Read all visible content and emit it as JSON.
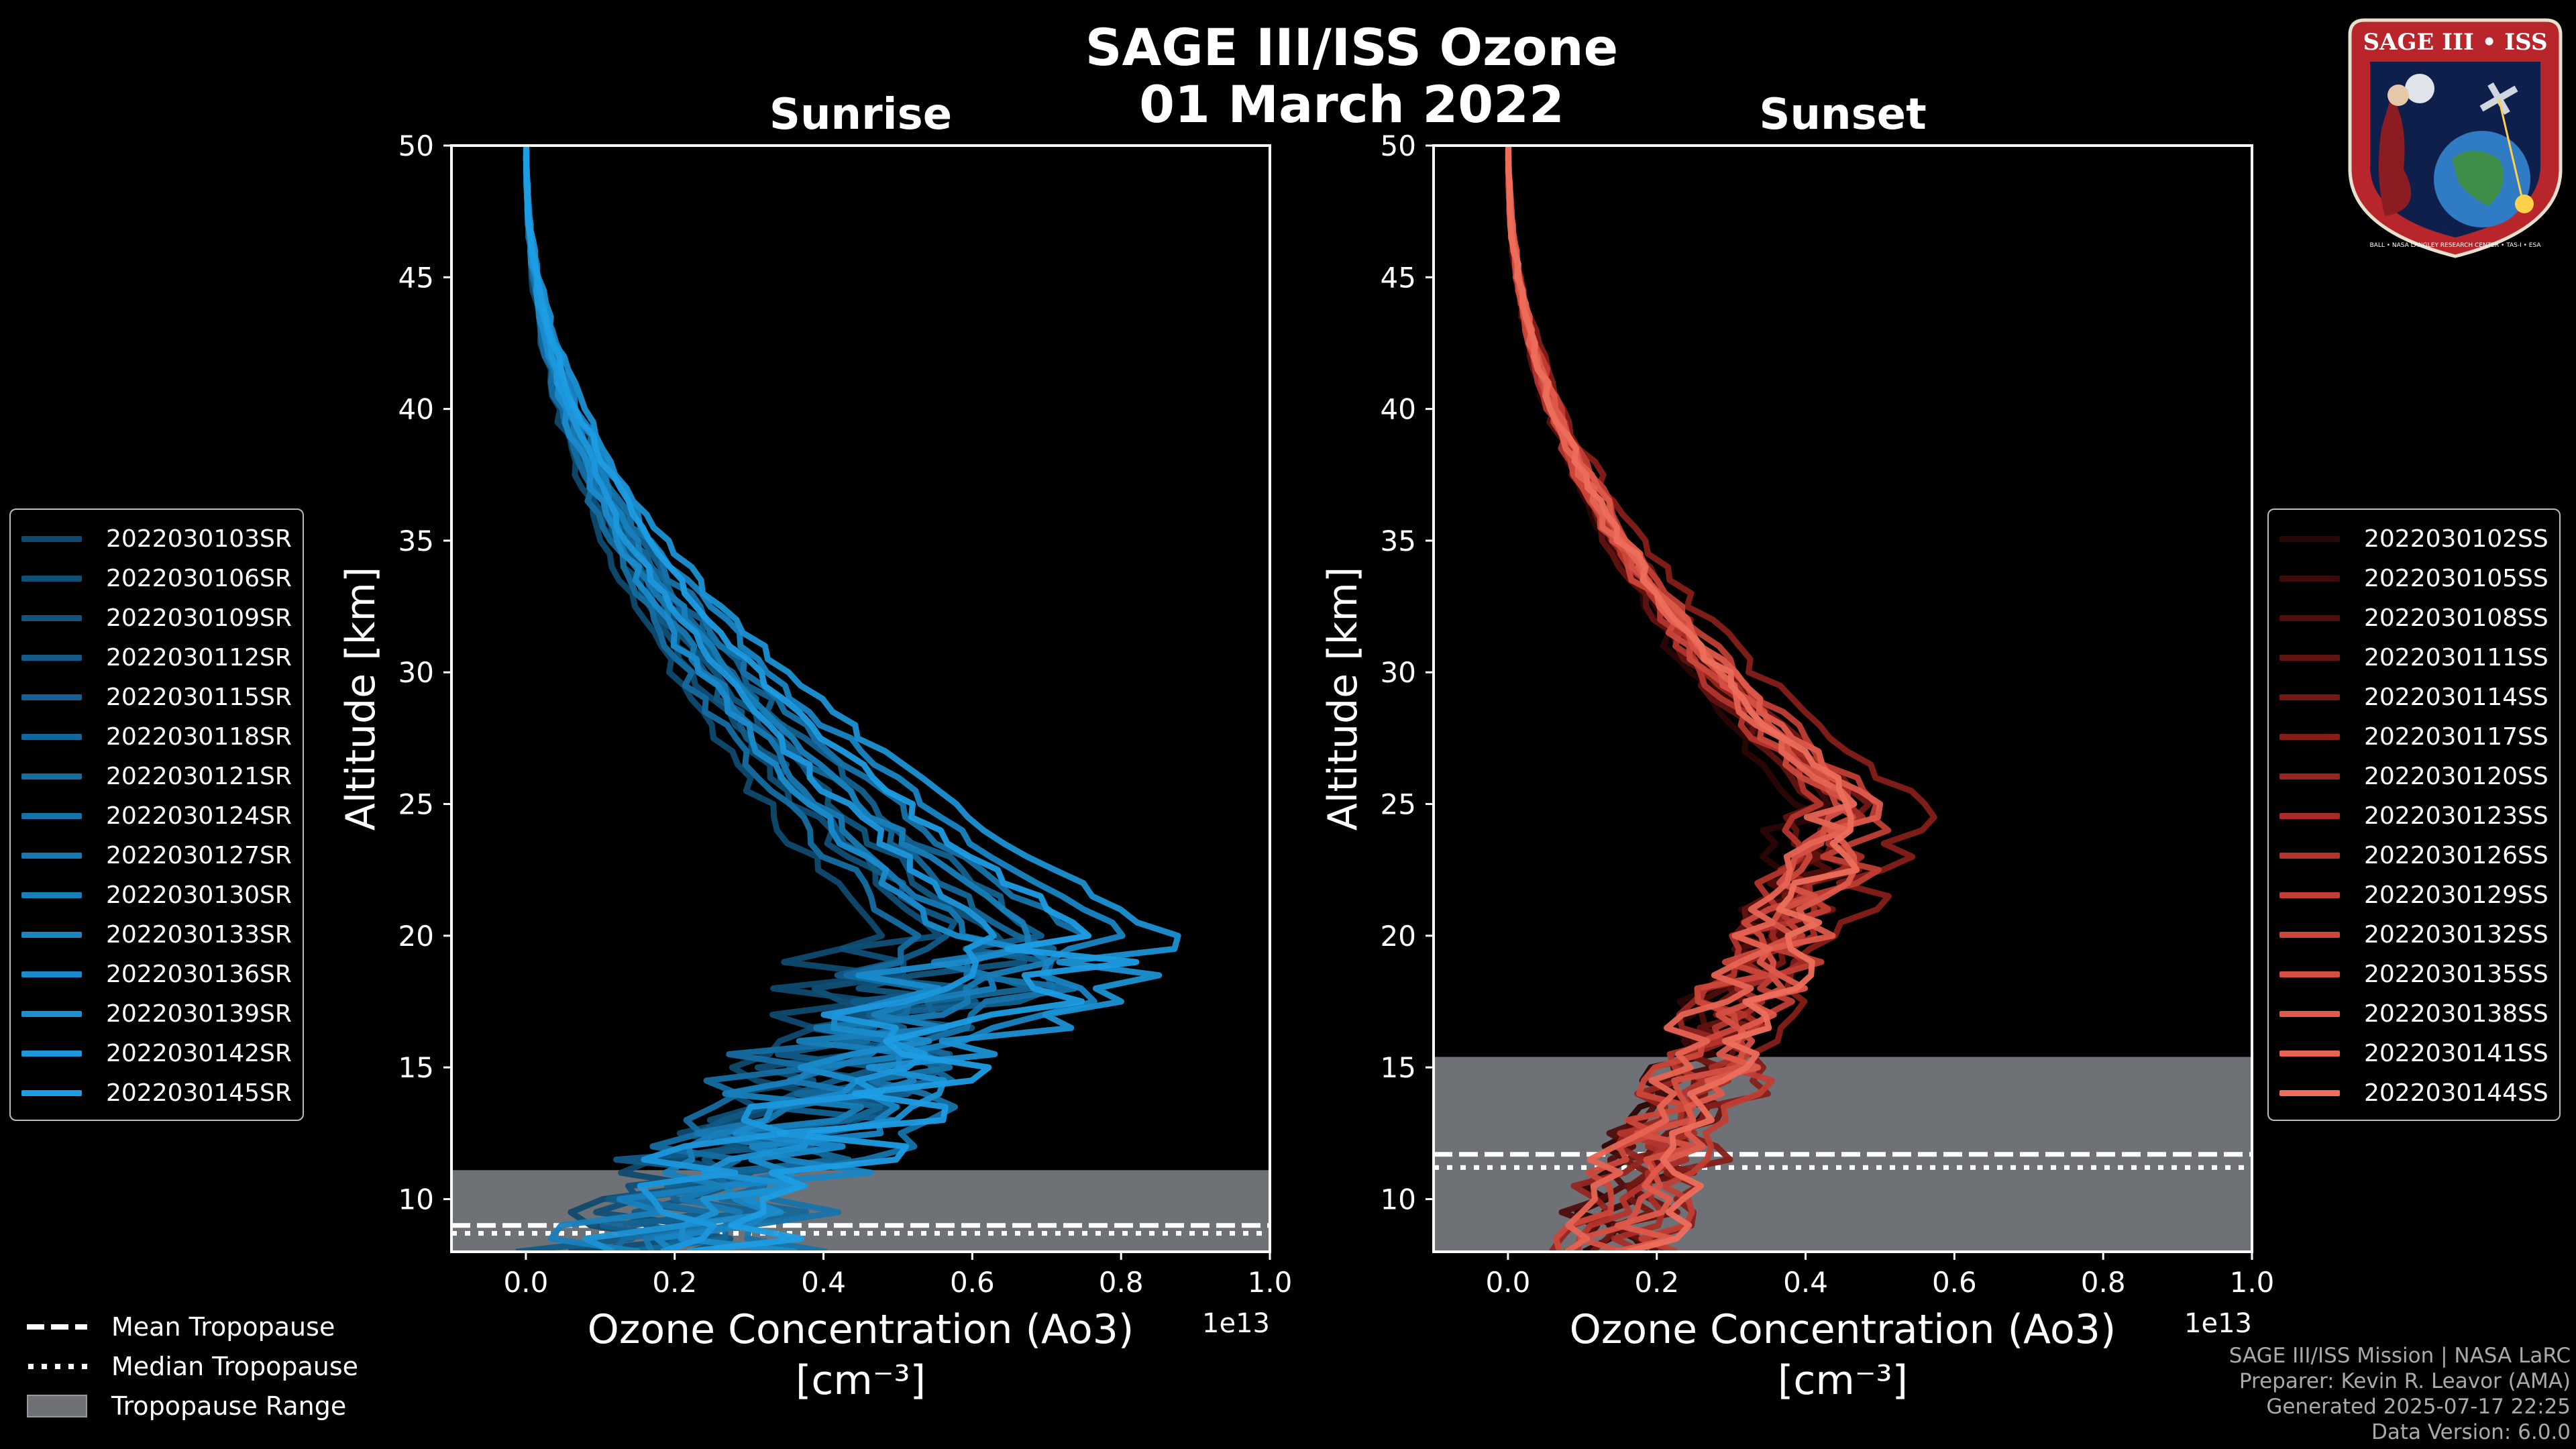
{
  "title": {
    "line1": "SAGE III/ISS Ozone",
    "line2": "01 March 2022"
  },
  "logo": {
    "text": "SAGE III • ISS",
    "ring_text": "BALL • NASA LANGLEY RESEARCH CENTER • TAS-I • ESA"
  },
  "chart_data": [
    {
      "type": "line",
      "title": "Sunrise",
      "xlabel": "Ozone Concentration (Ao3)",
      "xunit": "[cm⁻³]",
      "xscale_label": "1e13",
      "ylabel": "Altitude [km]",
      "xlim": [
        -0.1,
        1.0
      ],
      "ylim": [
        8,
        50
      ],
      "xticks": [
        "0.0",
        "0.2",
        "0.4",
        "0.6",
        "0.8",
        "1.0"
      ],
      "xtick_values": [
        0.0,
        0.2,
        0.4,
        0.6,
        0.8,
        1.0
      ],
      "yticks": [
        "10",
        "15",
        "20",
        "25",
        "30",
        "35",
        "40",
        "45",
        "50"
      ],
      "ytick_values": [
        10,
        15,
        20,
        25,
        30,
        35,
        40,
        45,
        50
      ],
      "tropopause": {
        "mean": 9.0,
        "median": 8.7,
        "range": [
          8,
          11.1
        ]
      },
      "series_names": [
        "2022030103SR",
        "2022030106SR",
        "2022030109SR",
        "2022030112SR",
        "2022030115SR",
        "2022030118SR",
        "2022030121SR",
        "2022030124SR",
        "2022030127SR",
        "2022030130SR",
        "2022030133SR",
        "2022030136SR",
        "2022030139SR",
        "2022030142SR",
        "2022030145SR"
      ],
      "series_colors": [
        "#0e4a6e",
        "#104f76",
        "#11557e",
        "#125b87",
        "#136190",
        "#146798",
        "#156da1",
        "#1673aa",
        "#1779b3",
        "#187fbb",
        "#1985c4",
        "#1a8bcc",
        "#1b91d4",
        "#1c97dc",
        "#1d9de4"
      ],
      "profile_peak_alt": 20,
      "profile_peak_values": [
        0.48,
        0.55,
        0.62,
        0.58,
        0.7,
        0.66,
        0.52,
        0.74,
        0.6,
        0.68,
        0.8,
        0.57,
        0.86,
        0.64,
        0.76
      ],
      "profile_low_values": [
        0.1,
        0.14,
        0.2,
        0.08,
        0.16,
        0.24,
        0.12,
        0.3,
        0.18,
        0.06,
        0.22,
        0.28,
        0.15,
        0.11,
        0.26
      ]
    },
    {
      "type": "line",
      "title": "Sunset",
      "xlabel": "Ozone Concentration (Ao3)",
      "xunit": "[cm⁻³]",
      "xscale_label": "1e13",
      "ylabel": "Altitude [km]",
      "xlim": [
        -0.1,
        1.0
      ],
      "ylim": [
        8,
        50
      ],
      "xticks": [
        "0.0",
        "0.2",
        "0.4",
        "0.6",
        "0.8",
        "1.0"
      ],
      "xtick_values": [
        0.0,
        0.2,
        0.4,
        0.6,
        0.8,
        1.0
      ],
      "yticks": [
        "10",
        "15",
        "20",
        "25",
        "30",
        "35",
        "40",
        "45",
        "50"
      ],
      "ytick_values": [
        10,
        15,
        20,
        25,
        30,
        35,
        40,
        45,
        50
      ],
      "tropopause": {
        "mean": 11.7,
        "median": 11.2,
        "range": [
          8,
          15.4
        ]
      },
      "series_names": [
        "2022030102SS",
        "2022030105SS",
        "2022030108SS",
        "2022030111SS",
        "2022030114SS",
        "2022030117SS",
        "2022030120SS",
        "2022030123SS",
        "2022030126SS",
        "2022030129SS",
        "2022030132SS",
        "2022030135SS",
        "2022030138SS",
        "2022030141SS",
        "2022030144SS"
      ],
      "series_colors": [
        "#2a0606",
        "#3c0a09",
        "#4f0e0c",
        "#611310",
        "#731813",
        "#851e18",
        "#962520",
        "#a62d26",
        "#b4352d",
        "#c03e34",
        "#cb473b",
        "#d55043",
        "#de5a4b",
        "#e66453",
        "#ed6e5c"
      ],
      "profile_peak_alt": 25,
      "profile_peak_values": [
        0.4,
        0.44,
        0.46,
        0.42,
        0.48,
        0.55,
        0.45,
        0.47,
        0.43,
        0.5,
        0.44,
        0.46,
        0.49,
        0.45,
        0.47
      ],
      "profile_low_values": [
        0.1,
        0.14,
        0.08,
        0.16,
        0.12,
        0.18,
        0.07,
        0.15,
        0.11,
        0.2,
        0.09,
        0.13,
        0.17,
        0.06,
        0.19
      ]
    }
  ],
  "bottom_legend": [
    {
      "label": "Mean Tropopause",
      "style": "dashed"
    },
    {
      "label": "Median Tropopause",
      "style": "dotted"
    },
    {
      "label": "Tropopause Range",
      "style": "patch"
    }
  ],
  "footer": [
    "SAGE III/ISS Mission | NASA LaRC",
    "Preparer: Kevin R. Leavor (AMA)",
    "Generated 2025-07-17 22:25",
    "Data Version: 6.0.0"
  ],
  "colors": {
    "tropopause_fill": "#6e7175",
    "frame": "#ffffff"
  }
}
